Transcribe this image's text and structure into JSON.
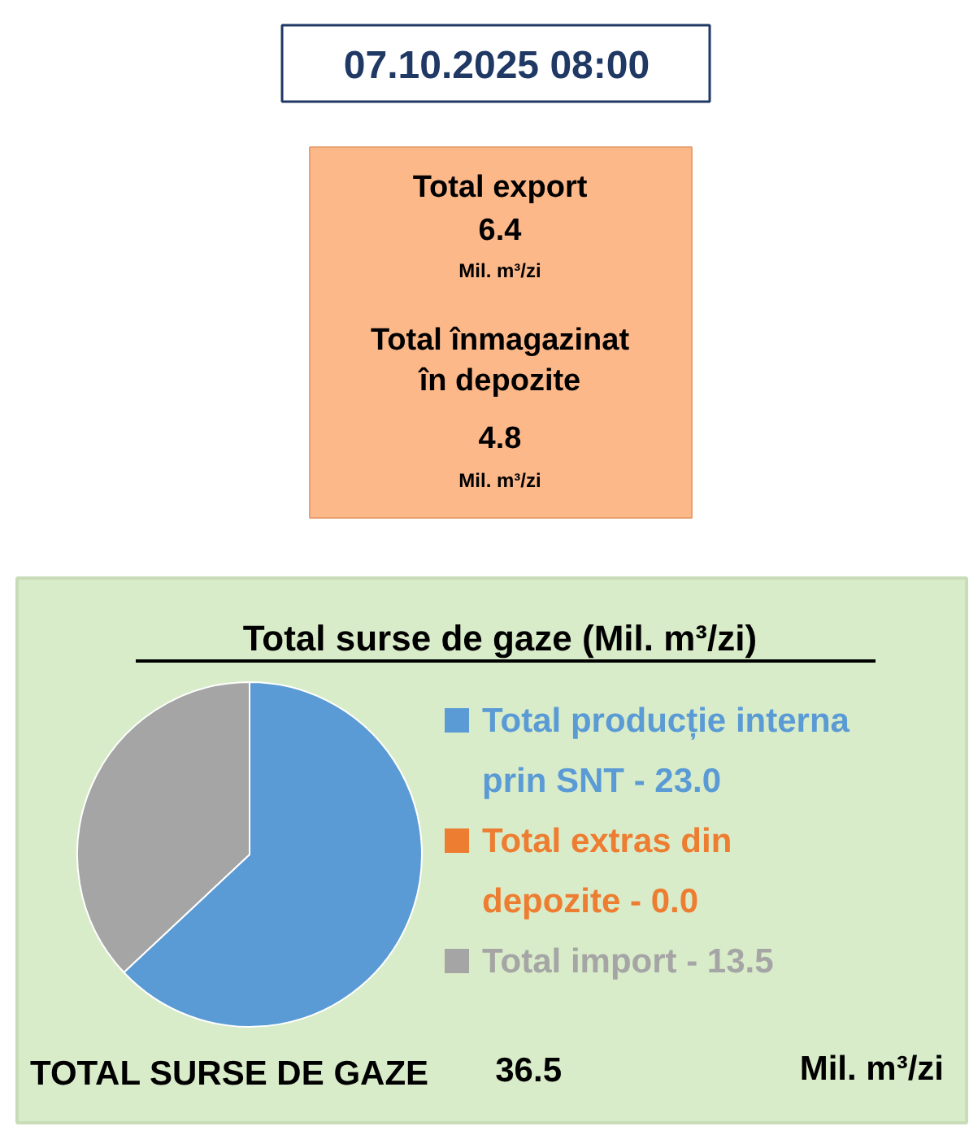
{
  "chart_data": {
    "type": "pie",
    "title": "Total surse de gaze  (Mil. m³/zi)",
    "categories": [
      "Total producție interna prin SNT",
      "Total extras din depozite",
      "Total import"
    ],
    "values": [
      23.0,
      0.0,
      13.5
    ],
    "value_labels": [
      "23.0",
      "0.0",
      "13.5"
    ],
    "colors": [
      "#5b9bd5",
      "#ed7d31",
      "#a5a5a5"
    ],
    "legend": "right",
    "annotations": [
      "07.10.2025 08:00",
      "Total export",
      "6.4",
      "Mil. m³/zi",
      "Total înmagazinat",
      "în depozite",
      "4.8",
      "Mil. m³/zi",
      "TOTAL SURSE DE GAZE",
      "36.5",
      "Mil. m³/zi"
    ]
  }
}
